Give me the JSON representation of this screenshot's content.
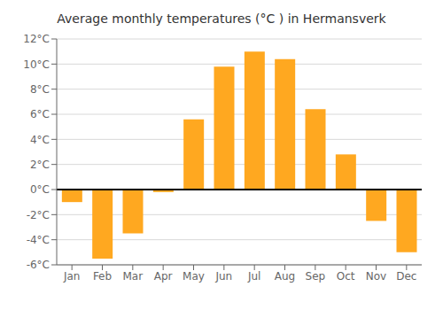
{
  "chart_data": {
    "type": "bar",
    "title": "Average monthly temperatures (°C ) in Hermansverk",
    "categories": [
      "Jan",
      "Feb",
      "Mar",
      "Apr",
      "May",
      "Jun",
      "Jul",
      "Aug",
      "Sep",
      "Oct",
      "Nov",
      "Dec"
    ],
    "values": [
      -1.0,
      -5.5,
      -3.5,
      -0.2,
      5.6,
      9.8,
      11.0,
      10.4,
      6.4,
      2.8,
      -2.5,
      -5.0
    ],
    "color": "#FFA820",
    "ylim": [
      -6,
      12
    ],
    "yticks": [
      {
        "value": -6,
        "label": "-6°C"
      },
      {
        "value": -4,
        "label": "-4°C"
      },
      {
        "value": -2,
        "label": "-2°C"
      },
      {
        "value": 0,
        "label": "0°C"
      },
      {
        "value": 2,
        "label": "2°C"
      },
      {
        "value": 4,
        "label": "4°C"
      },
      {
        "value": 6,
        "label": "6°C"
      },
      {
        "value": 8,
        "label": "8°C"
      },
      {
        "value": 10,
        "label": "10°C"
      },
      {
        "value": 12,
        "label": "12°C"
      }
    ],
    "grid": true
  }
}
